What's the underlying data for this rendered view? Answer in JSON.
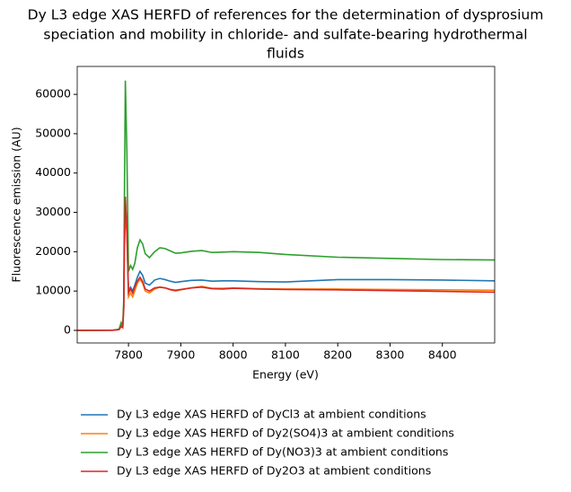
{
  "chart_data": {
    "type": "line",
    "title": [
      "Dy L3 edge XAS HERFD of references for the determination of dysprosium",
      "speciation and mobility in chloride- and sulfate-bearing hydrothermal",
      "fluids"
    ],
    "xlabel": "Energy (eV)",
    "ylabel": "Fluorescence emission (AU)",
    "x": [
      7702,
      7770,
      7782,
      7786,
      7789,
      7791,
      7792,
      7794,
      7797,
      7800,
      7804,
      7808,
      7812,
      7817,
      7822,
      7827,
      7832,
      7840,
      7850,
      7860,
      7870,
      7880,
      7890,
      7900,
      7920,
      7940,
      7960,
      7980,
      8000,
      8050,
      8100,
      8200,
      8300,
      8400,
      8500
    ],
    "series": [
      {
        "name": "Dy L3 edge XAS HERFD of DyCl3 at ambient conditions",
        "color": "#1f77b4",
        "values": [
          0,
          30,
          200,
          1200,
          800,
          6000,
          20000,
          33000,
          25000,
          10000,
          11000,
          10000,
          11500,
          13500,
          15000,
          14000,
          12000,
          11500,
          12800,
          13200,
          12900,
          12500,
          12200,
          12400,
          12700,
          12800,
          12500,
          12600,
          12600,
          12400,
          12300,
          12900,
          12900,
          12800,
          12600
        ]
      },
      {
        "name": "Dy L3 edge XAS HERFD of Dy2(SO4)3 at ambient conditions",
        "color": "#ff7f0e",
        "values": [
          0,
          30,
          200,
          1000,
          700,
          5500,
          19000,
          32000,
          24000,
          8500,
          9500,
          8500,
          10000,
          12000,
          13000,
          12000,
          10000,
          9500,
          10500,
          11000,
          10800,
          10300,
          10000,
          10300,
          10800,
          11200,
          10700,
          10700,
          10800,
          10600,
          10500,
          10500,
          10400,
          10300,
          10200
        ]
      },
      {
        "name": "Dy L3 edge XAS HERFD of Dy(NO3)3 at ambient conditions",
        "color": "#2ca02c",
        "values": [
          0,
          50,
          300,
          2000,
          1000,
          8000,
          30000,
          63500,
          45000,
          15000,
          16500,
          15500,
          17000,
          21000,
          23000,
          22000,
          19500,
          18500,
          20000,
          21000,
          20800,
          20200,
          19600,
          19700,
          20100,
          20300,
          19800,
          19900,
          20000,
          19800,
          19300,
          18600,
          18300,
          18000,
          17900
        ]
      },
      {
        "name": "Dy L3 edge XAS HERFD of Dy2O3 at ambient conditions",
        "color": "#d62728",
        "values": [
          0,
          30,
          200,
          1000,
          700,
          6000,
          20000,
          34000,
          25000,
          9500,
          10500,
          9500,
          11000,
          12500,
          13500,
          12500,
          10500,
          10000,
          10800,
          11000,
          10800,
          10400,
          10200,
          10400,
          10800,
          11000,
          10600,
          10500,
          10700,
          10500,
          10400,
          10300,
          10100,
          9900,
          9700
        ]
      }
    ],
    "xlim": [
      7702,
      8500
    ],
    "xticks": [
      7800,
      7900,
      8000,
      8100,
      8200,
      8300,
      8400
    ],
    "ylim": [
      -3200,
      67100
    ],
    "yticks": [
      0,
      10000,
      20000,
      30000,
      40000,
      50000,
      60000
    ],
    "grid": false,
    "legend": "below"
  }
}
